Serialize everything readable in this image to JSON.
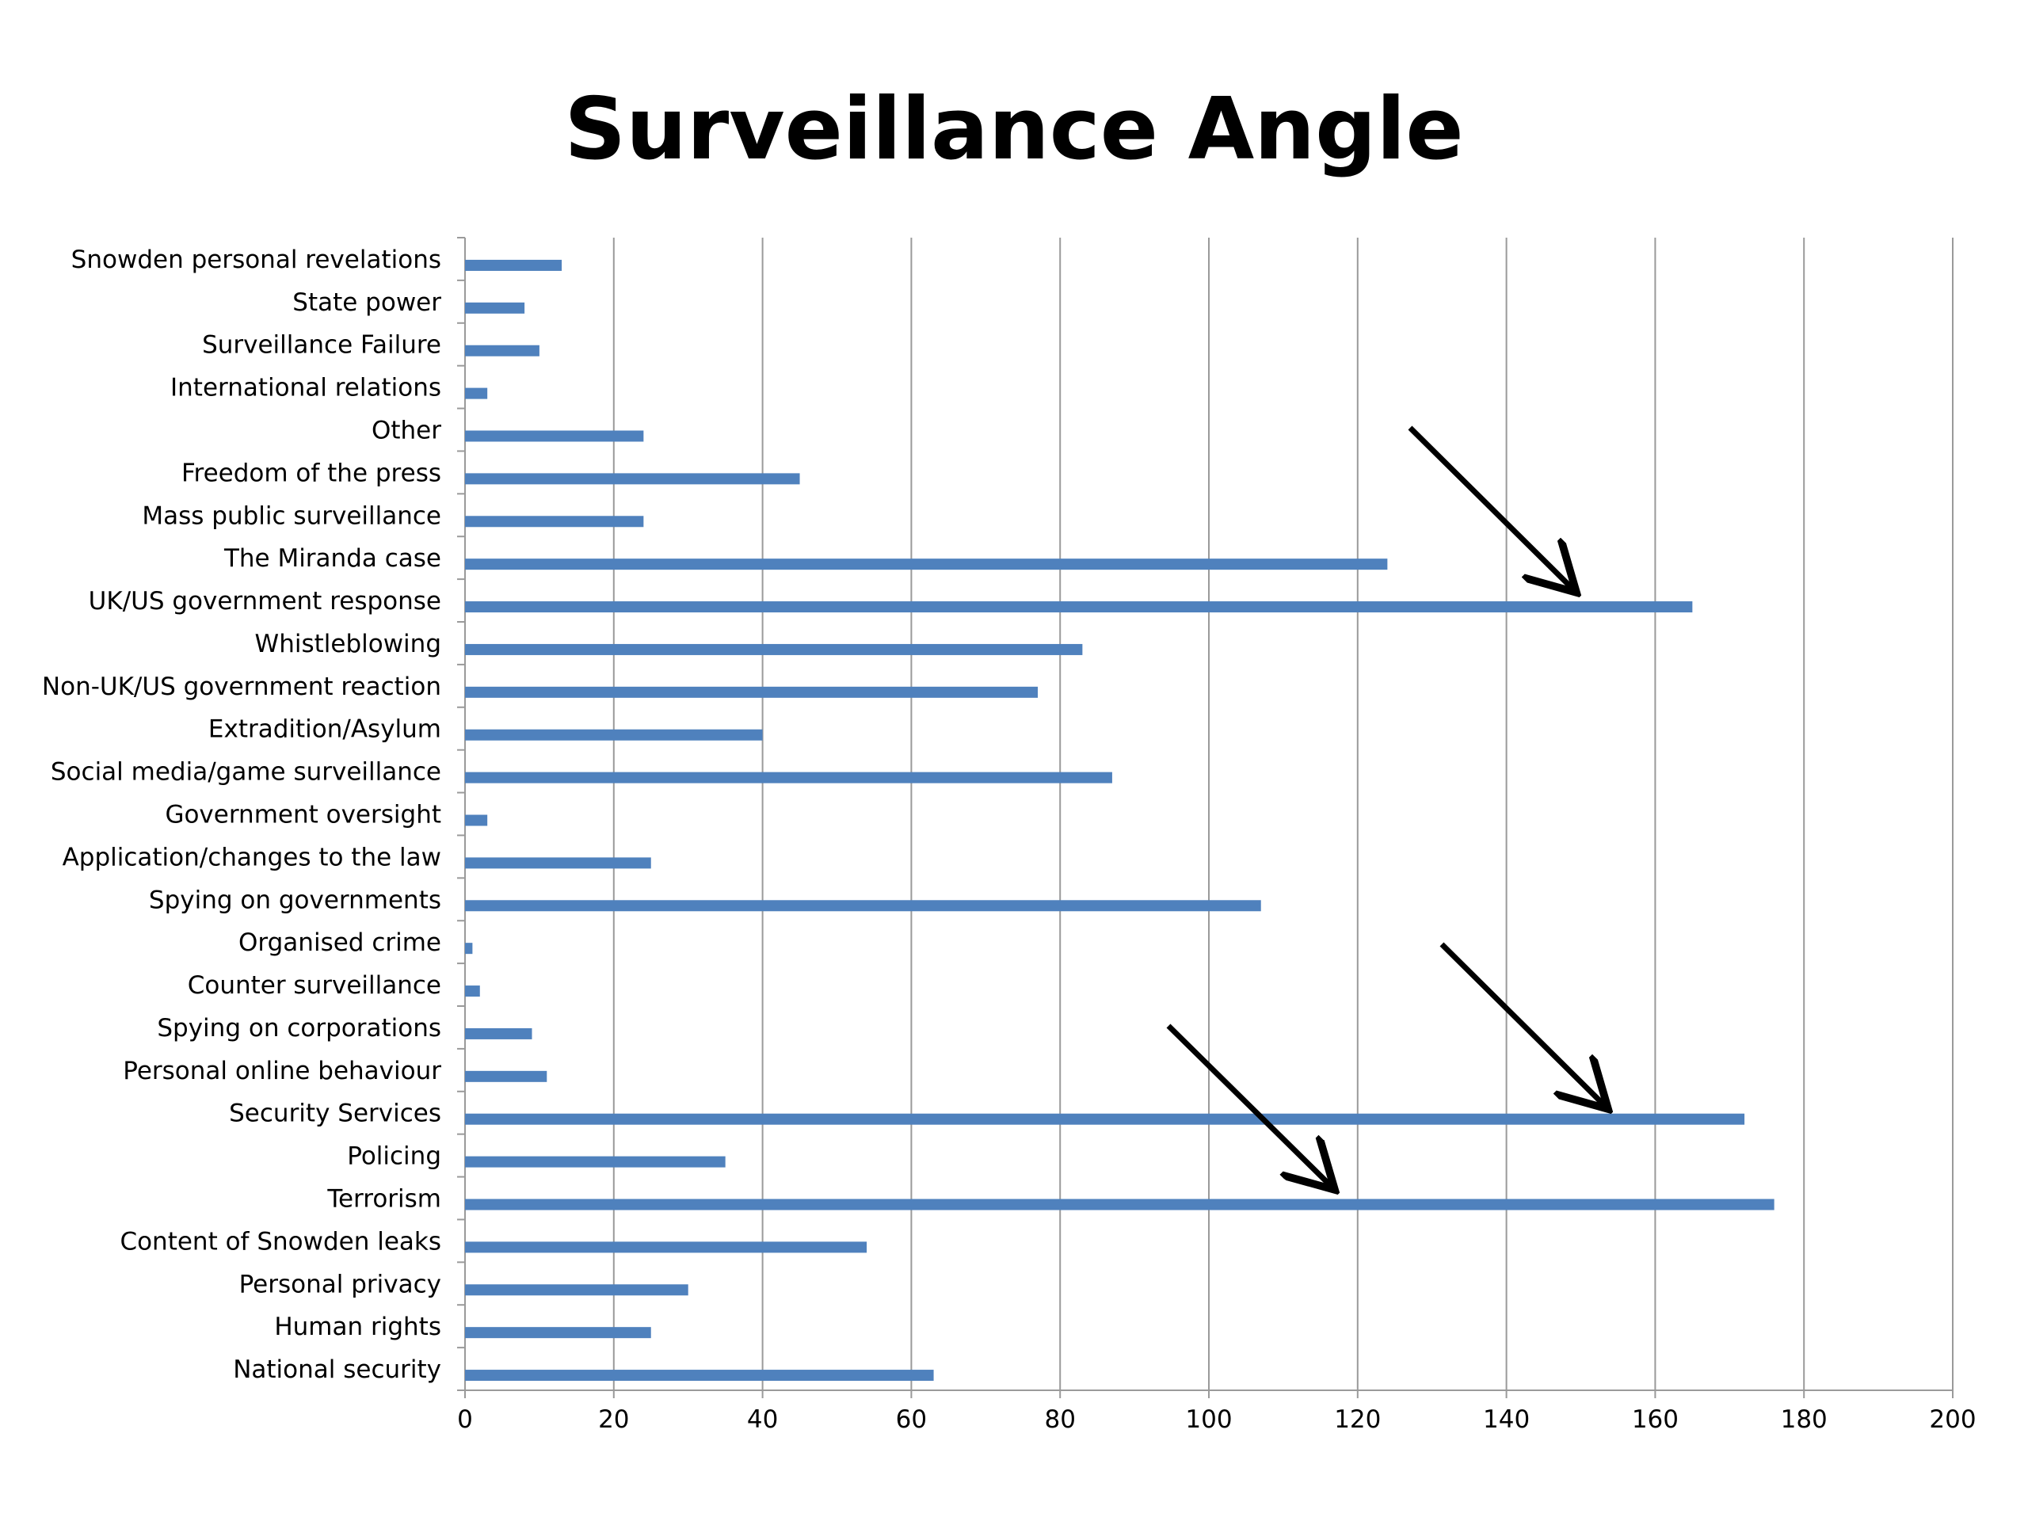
{
  "chart_data": {
    "type": "bar",
    "orientation": "horizontal",
    "title": "Surveillance Angle",
    "xlabel": "",
    "ylabel": "",
    "xlim": [
      0,
      200
    ],
    "xticks": [
      0,
      20,
      40,
      60,
      80,
      100,
      120,
      140,
      160,
      180,
      200
    ],
    "grid": "vertical",
    "legend": "none",
    "bar_color": "#4f81bd",
    "categories": [
      "Snowden personal revelations",
      "State power",
      "Surveillance Failure",
      "International relations",
      "Other",
      "Freedom of the press",
      "Mass public surveillance",
      "The Miranda case",
      "UK/US government response",
      "Whistleblowing",
      "Non-UK/US government reaction",
      "Extradition/Asylum",
      "Social media/game surveillance",
      "Government oversight",
      "Application/changes to the law",
      "Spying on governments",
      "Organised crime",
      "Counter surveillance",
      "Spying on corporations",
      "Personal online behaviour",
      "Security Services",
      "Policing",
      "Terrorism",
      "Content of Snowden leaks",
      "Personal privacy",
      "Human rights",
      "National security"
    ],
    "values": [
      13,
      8,
      10,
      3,
      24,
      45,
      24,
      124,
      165,
      83,
      77,
      40,
      87,
      3,
      25,
      107,
      1,
      2,
      9,
      11,
      172,
      35,
      176,
      54,
      30,
      25,
      63
    ],
    "annotations": [
      {
        "type": "arrow",
        "points_to": "UK/US government response"
      },
      {
        "type": "arrow",
        "points_to": "Security Services"
      },
      {
        "type": "arrow",
        "points_to": "Terrorism"
      }
    ]
  }
}
